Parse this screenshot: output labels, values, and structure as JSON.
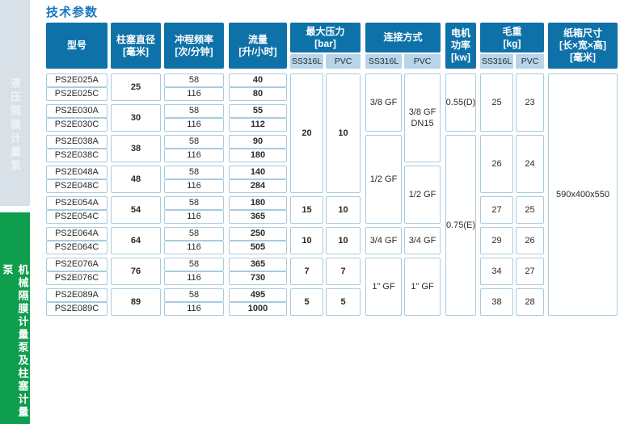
{
  "page_title": "技术参数",
  "sidebar": {
    "top_label": "液压隔膜计量泵",
    "bottom_label": "机械隔膜计量泵及柱塞计量泵"
  },
  "colors": {
    "header_blue": "#0e72a9",
    "subheader_blue": "#b8d4e8",
    "border_blue": "#a9cbdf",
    "title_blue": "#1878be",
    "sidebar_gray": "#d8e1e8",
    "sidebar_green": "#0f9d4e"
  },
  "table": {
    "headers": {
      "model": "型号",
      "diameter": "柱塞直径\n[毫米]",
      "stroke": "冲程频率\n[次/分钟]",
      "flow": "流量\n[升/小时]",
      "pressure": "最大压力\n[bar]",
      "connection": "连接方式",
      "power": "电机\n功率\n[kw]",
      "weight": "毛重\n[kg]",
      "carton": "纸箱尺寸\n[长×宽×高]\n[毫米]"
    },
    "material_ss": "SS316L",
    "material_pvc": "PVC",
    "rows": [
      {
        "model": "PS2E025A",
        "stroke": "58",
        "flow": "40"
      },
      {
        "model": "PS2E025C",
        "stroke": "116",
        "flow": "80"
      },
      {
        "model": "PS2E030A",
        "stroke": "58",
        "flow": "55"
      },
      {
        "model": "PS2E030C",
        "stroke": "116",
        "flow": "112"
      },
      {
        "model": "PS2E038A",
        "stroke": "58",
        "flow": "90"
      },
      {
        "model": "PS2E038C",
        "stroke": "116",
        "flow": "180"
      },
      {
        "model": "PS2E048A",
        "stroke": "58",
        "flow": "140"
      },
      {
        "model": "PS2E048C",
        "stroke": "116",
        "flow": "284"
      },
      {
        "model": "PS2E054A",
        "stroke": "58",
        "flow": "180"
      },
      {
        "model": "PS2E054C",
        "stroke": "116",
        "flow": "365"
      },
      {
        "model": "PS2E064A",
        "stroke": "58",
        "flow": "250"
      },
      {
        "model": "PS2E064C",
        "stroke": "116",
        "flow": "505"
      },
      {
        "model": "PS2E076A",
        "stroke": "58",
        "flow": "365"
      },
      {
        "model": "PS2E076C",
        "stroke": "116",
        "flow": "730"
      },
      {
        "model": "PS2E089A",
        "stroke": "58",
        "flow": "495"
      },
      {
        "model": "PS2E089C",
        "stroke": "116",
        "flow": "1000"
      }
    ],
    "diameters": [
      "25",
      "30",
      "38",
      "48",
      "54",
      "64",
      "76",
      "89"
    ],
    "pressure_ss": [
      "20",
      "15",
      "10",
      "7",
      "5"
    ],
    "pressure_pvc": [
      "10",
      "10",
      "10",
      "7",
      "5"
    ],
    "conn_ss": [
      "3/8 GF",
      "1/2 GF",
      "3/4 GF",
      "1\" GF"
    ],
    "conn_pvc": [
      "3/8 GF\nDN15",
      "1/2 GF",
      "3/4 GF",
      "1\" GF"
    ],
    "power": [
      "0.55(D)",
      "0.75(E)"
    ],
    "weight_ss": [
      "25",
      "26",
      "27",
      "29",
      "34",
      "38"
    ],
    "weight_pvc": [
      "23",
      "24",
      "25",
      "26",
      "27",
      "28"
    ],
    "carton_size": "590x400x550"
  }
}
